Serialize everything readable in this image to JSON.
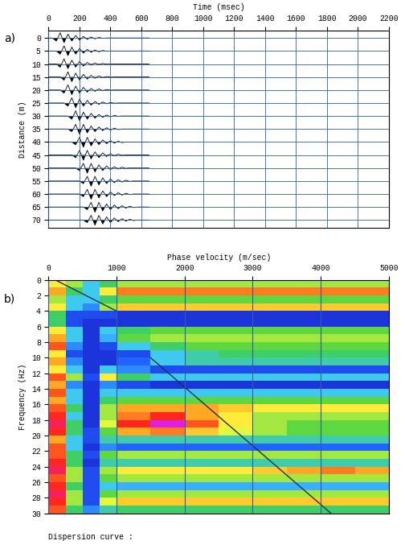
{
  "chart_data": [
    {
      "type": "wiggle",
      "panel_label": "a)",
      "xlabel": "Time (msec)",
      "ylabel": "Distance (m)",
      "xlim": [
        0,
        2200
      ],
      "xticks": [
        0,
        200,
        400,
        600,
        800,
        1000,
        1200,
        1400,
        1600,
        1800,
        2000,
        2200
      ],
      "ylim": [
        73,
        -3
      ],
      "yticks": [
        0,
        5,
        10,
        15,
        20,
        25,
        30,
        35,
        40,
        45,
        50,
        55,
        60,
        65,
        70
      ],
      "grid": true,
      "color": "#000000",
      "x": [
        0,
        25,
        50,
        75,
        100,
        125,
        150,
        175,
        200,
        225,
        250,
        275,
        300,
        325,
        350,
        375,
        400,
        425,
        450,
        475,
        500,
        525,
        550,
        575,
        600,
        625,
        650
      ],
      "traces": [
        {
          "distance": 0,
          "values": [
            0,
            0,
            1.2,
            -2.0,
            1.8,
            -1.5,
            1.2,
            -1.0,
            0.8,
            -0.6,
            0.5,
            -0.4,
            0.3,
            -0.2,
            0.1,
            0,
            0,
            0,
            0,
            0,
            0,
            0,
            0,
            0,
            0,
            0,
            0
          ]
        },
        {
          "distance": 5,
          "values": [
            0,
            0,
            0,
            1.2,
            -2.0,
            1.8,
            -1.5,
            1.2,
            -1.0,
            0.8,
            -0.6,
            0.5,
            -0.4,
            0.3,
            -0.2,
            0.1,
            0,
            0,
            0,
            0,
            0,
            0,
            0,
            0,
            0,
            0,
            0
          ]
        },
        {
          "distance": 10,
          "values": [
            0,
            0,
            0,
            1.2,
            -2.0,
            1.8,
            -1.5,
            1.2,
            -1.0,
            0.8,
            -0.6,
            0.5,
            -0.4,
            0.3,
            -0.2,
            0.1,
            0,
            0,
            0,
            0,
            0,
            0,
            0,
            0,
            0,
            0,
            0
          ]
        },
        {
          "distance": 15,
          "values": [
            0,
            0,
            0,
            0,
            1.2,
            -2.0,
            1.8,
            -1.5,
            1.2,
            -1.0,
            0.8,
            -0.6,
            0.5,
            -0.4,
            0.3,
            -0.2,
            0.1,
            0,
            0,
            0,
            0,
            0,
            0,
            0,
            0,
            0,
            0
          ]
        },
        {
          "distance": 20,
          "values": [
            0,
            0,
            0,
            0,
            1.2,
            -2.0,
            1.8,
            -1.5,
            1.2,
            -1.0,
            0.8,
            -0.6,
            0.5,
            -0.4,
            0.3,
            -0.2,
            0.1,
            0,
            0,
            0,
            0,
            0,
            0,
            0,
            0,
            0,
            0
          ]
        },
        {
          "distance": 25,
          "values": [
            0,
            0,
            0,
            0,
            0,
            1.2,
            -2.0,
            1.8,
            -1.5,
            1.2,
            -1.0,
            0.8,
            -0.6,
            0.5,
            -0.4,
            0.3,
            -0.2,
            0.1,
            0,
            0,
            0,
            0,
            0,
            0,
            0,
            0,
            0
          ]
        },
        {
          "distance": 30,
          "values": [
            0,
            0,
            0,
            0,
            0,
            0,
            1.2,
            -2.0,
            1.8,
            -1.5,
            1.2,
            -1.0,
            0.8,
            -0.6,
            0.5,
            -0.4,
            0.3,
            -0.2,
            0.1,
            0,
            0,
            0,
            0,
            0,
            0,
            0,
            0
          ]
        },
        {
          "distance": 35,
          "values": [
            0,
            0,
            0,
            0,
            0,
            0,
            1.0,
            -1.8,
            2.0,
            -1.8,
            1.5,
            -1.2,
            1.0,
            -0.8,
            0.6,
            -0.5,
            0.4,
            -0.3,
            0.2,
            0,
            0,
            0,
            0,
            0,
            0,
            0,
            0
          ]
        },
        {
          "distance": 40,
          "values": [
            0,
            0,
            0,
            0,
            0,
            0,
            0,
            1.0,
            -1.8,
            2.0,
            -1.8,
            1.5,
            -1.2,
            1.0,
            -0.8,
            0.6,
            -0.5,
            0.4,
            -0.3,
            0.2,
            0,
            0,
            0,
            0,
            0,
            0,
            0
          ]
        },
        {
          "distance": 45,
          "values": [
            0,
            0,
            0,
            0,
            0,
            0,
            0,
            1.0,
            -1.8,
            2.0,
            -1.8,
            1.5,
            -1.2,
            1.0,
            -0.8,
            0.6,
            -0.5,
            0.4,
            -0.3,
            0.2,
            0,
            0,
            0,
            0,
            0,
            0,
            0
          ]
        },
        {
          "distance": 50,
          "values": [
            0,
            0,
            0,
            0,
            0,
            0,
            0,
            0,
            1.0,
            -1.8,
            2.0,
            -1.8,
            1.5,
            -1.2,
            1.0,
            -0.8,
            0.6,
            -0.5,
            0.4,
            -0.3,
            0.2,
            0,
            0,
            0,
            0,
            0,
            0
          ]
        },
        {
          "distance": 55,
          "values": [
            0,
            0,
            0,
            0,
            0,
            0,
            0,
            0,
            0,
            1.0,
            -1.8,
            2.0,
            -1.8,
            1.5,
            -1.2,
            1.0,
            -0.8,
            0.6,
            -0.5,
            0.4,
            -0.3,
            0.2,
            0,
            0,
            0,
            0,
            0
          ]
        },
        {
          "distance": 60,
          "values": [
            0,
            0,
            0,
            0,
            0,
            0,
            0,
            0,
            0,
            1.0,
            -1.8,
            2.0,
            -1.8,
            1.5,
            -1.2,
            1.0,
            -0.8,
            0.6,
            -0.5,
            0.4,
            -0.3,
            0.2,
            0,
            0,
            0,
            0,
            0
          ]
        },
        {
          "distance": 65,
          "values": [
            0,
            0,
            0,
            0,
            0,
            0,
            0,
            0,
            0,
            0,
            1.0,
            -1.8,
            2.0,
            -1.8,
            1.5,
            -1.2,
            1.0,
            -0.8,
            0.6,
            -0.5,
            0.4,
            -0.3,
            0.2,
            0,
            0,
            0,
            0
          ]
        },
        {
          "distance": 70,
          "values": [
            0,
            0,
            0,
            0,
            0,
            0,
            0,
            0,
            0,
            0,
            1.0,
            -1.8,
            2.0,
            -1.8,
            1.5,
            -1.2,
            1.0,
            -0.8,
            0.6,
            -0.5,
            0.4,
            -0.3,
            0.2,
            0,
            0,
            0,
            0
          ]
        }
      ]
    },
    {
      "type": "heatmap",
      "panel_label": "b)",
      "xlabel": "Phase velocity (m/sec)",
      "ylabel": "Frequency (Hz)",
      "caption": "Dispersion curve :",
      "xlim": [
        0,
        5000
      ],
      "xticks": [
        0,
        1000,
        2000,
        3000,
        4000,
        5000
      ],
      "ylim": [
        30,
        0
      ],
      "yticks": [
        0,
        2,
        4,
        6,
        8,
        10,
        12,
        14,
        16,
        18,
        20,
        22,
        24,
        26,
        28,
        30
      ],
      "grid": "x",
      "zlim": [
        0,
        1
      ],
      "x_edges": [
        0,
        250,
        500,
        750,
        1000,
        1500,
        2000,
        2500,
        3000,
        3500,
        4000,
        4500,
        5000
      ],
      "y_edges": [
        0,
        1,
        2,
        3,
        4,
        5,
        6,
        7,
        8,
        9,
        10,
        11,
        12,
        13,
        14,
        15,
        16,
        17,
        18,
        19,
        20,
        21,
        22,
        23,
        24,
        25,
        26,
        27,
        28,
        29,
        30
      ],
      "cells": [
        [
          0.6,
          0.5,
          0.3,
          0.4,
          0.5,
          0.5,
          0.5,
          0.5,
          0.5,
          0.5,
          0.5,
          0.5
        ],
        [
          0.7,
          0.4,
          0.3,
          0.6,
          0.75,
          0.75,
          0.75,
          0.75,
          0.75,
          0.75,
          0.75,
          0.75
        ],
        [
          0.5,
          0.3,
          0.3,
          0.4,
          0.45,
          0.45,
          0.45,
          0.45,
          0.45,
          0.45,
          0.45,
          0.45
        ],
        [
          0.6,
          0.3,
          0.2,
          0.5,
          0.65,
          0.65,
          0.65,
          0.65,
          0.65,
          0.65,
          0.65,
          0.65
        ],
        [
          0.4,
          0.1,
          0.1,
          0.1,
          0.05,
          0.05,
          0.05,
          0.05,
          0.05,
          0.05,
          0.05,
          0.05
        ],
        [
          0.4,
          0.1,
          0.05,
          0.05,
          0.05,
          0.05,
          0.05,
          0.05,
          0.05,
          0.05,
          0.05,
          0.05
        ],
        [
          0.6,
          0.3,
          0.05,
          0.3,
          0.4,
          0.45,
          0.45,
          0.45,
          0.45,
          0.45,
          0.45,
          0.45
        ],
        [
          0.7,
          0.3,
          0.05,
          0.25,
          0.45,
          0.5,
          0.5,
          0.5,
          0.5,
          0.5,
          0.5,
          0.5
        ],
        [
          0.8,
          0.2,
          0.05,
          0.1,
          0.3,
          0.4,
          0.45,
          0.45,
          0.45,
          0.45,
          0.45,
          0.45
        ],
        [
          0.6,
          0.1,
          0.05,
          0.05,
          0.1,
          0.3,
          0.35,
          0.4,
          0.4,
          0.4,
          0.4,
          0.4
        ],
        [
          0.7,
          0.2,
          0.05,
          0.05,
          0.15,
          0.3,
          0.35,
          0.35,
          0.35,
          0.35,
          0.35,
          0.35
        ],
        [
          0.6,
          0.3,
          0.05,
          0.3,
          0.2,
          0.1,
          0.1,
          0.1,
          0.1,
          0.1,
          0.1,
          0.1
        ],
        [
          0.8,
          0.5,
          0.1,
          0.6,
          0.4,
          0.3,
          0.3,
          0.3,
          0.3,
          0.3,
          0.3,
          0.3
        ],
        [
          0.7,
          0.2,
          0.05,
          0.2,
          0.1,
          0.05,
          0.05,
          0.05,
          0.05,
          0.05,
          0.05,
          0.05
        ],
        [
          0.8,
          0.3,
          0.05,
          0.3,
          0.3,
          0.3,
          0.3,
          0.3,
          0.3,
          0.3,
          0.3,
          0.3
        ],
        [
          0.7,
          0.3,
          0.05,
          0.4,
          0.45,
          0.45,
          0.45,
          0.45,
          0.45,
          0.45,
          0.45,
          0.45
        ],
        [
          0.8,
          0.4,
          0.05,
          0.5,
          0.7,
          0.7,
          0.7,
          0.65,
          0.6,
          0.6,
          0.6,
          0.6
        ],
        [
          0.85,
          0.3,
          0.05,
          0.5,
          0.75,
          0.85,
          0.7,
          0.6,
          0.5,
          0.5,
          0.5,
          0.5
        ],
        [
          0.9,
          0.4,
          0.05,
          0.55,
          0.85,
          1.0,
          0.8,
          0.6,
          0.5,
          0.45,
          0.45,
          0.45
        ],
        [
          0.85,
          0.4,
          0.1,
          0.45,
          0.7,
          0.75,
          0.65,
          0.55,
          0.5,
          0.45,
          0.45,
          0.45
        ],
        [
          0.7,
          0.3,
          0.1,
          0.35,
          0.35,
          0.35,
          0.35,
          0.35,
          0.35,
          0.35,
          0.35,
          0.35
        ],
        [
          0.8,
          0.3,
          0.05,
          0.2,
          0.15,
          0.15,
          0.15,
          0.15,
          0.15,
          0.15,
          0.15,
          0.15
        ],
        [
          0.8,
          0.4,
          0.1,
          0.45,
          0.5,
          0.5,
          0.5,
          0.5,
          0.5,
          0.5,
          0.5,
          0.5
        ],
        [
          0.85,
          0.4,
          0.05,
          0.35,
          0.35,
          0.35,
          0.35,
          0.35,
          0.35,
          0.35,
          0.35,
          0.35
        ],
        [
          0.9,
          0.5,
          0.1,
          0.5,
          0.6,
          0.6,
          0.6,
          0.6,
          0.65,
          0.7,
          0.75,
          0.7
        ],
        [
          0.8,
          0.5,
          0.1,
          0.45,
          0.5,
          0.5,
          0.5,
          0.5,
          0.5,
          0.5,
          0.5,
          0.5
        ],
        [
          0.85,
          0.4,
          0.1,
          0.3,
          0.25,
          0.25,
          0.25,
          0.25,
          0.25,
          0.25,
          0.25,
          0.25
        ],
        [
          0.9,
          0.5,
          0.1,
          0.45,
          0.5,
          0.5,
          0.5,
          0.5,
          0.5,
          0.5,
          0.5,
          0.5
        ],
        [
          0.85,
          0.5,
          0.1,
          0.55,
          0.65,
          0.65,
          0.65,
          0.65,
          0.65,
          0.65,
          0.65,
          0.65
        ],
        [
          0.8,
          0.4,
          0.2,
          0.35,
          0.4,
          0.4,
          0.4,
          0.4,
          0.4,
          0.4,
          0.4,
          0.4
        ]
      ],
      "lines": [
        {
          "x": [
            100,
            1000
          ],
          "y": [
            0,
            4
          ],
          "color": "#203050"
        },
        {
          "x": [
            1500,
            4150
          ],
          "y": [
            10,
            30
          ],
          "color": "#203050"
        }
      ]
    }
  ]
}
